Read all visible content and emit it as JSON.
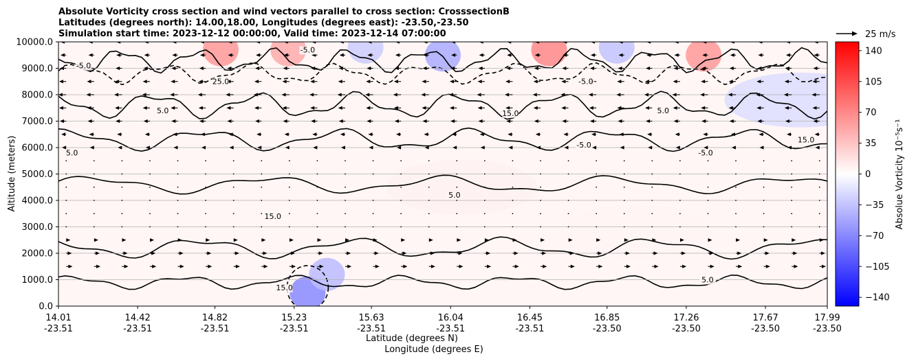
{
  "chart_data": {
    "type": "heatmap",
    "title_lines": [
      "Absolute Vorticity cross section and wind vectors parallel to cross section: CrosssectionB",
      "Latitudes (degrees north): 14.00,18.00, Longitudes (degrees east): -23.50,-23.50",
      "Simulation start time: 2023-12-12 00:00:00, Valid time: 2023-12-14 07:00:00"
    ],
    "ylabel": "Altitude (meters)",
    "xlabel_line1": "Latitude (degrees N)",
    "xlabel_line2": "Longitude (degrees E)",
    "ylim": [
      0,
      10000
    ],
    "y_ticks": [
      0,
      1000,
      2000,
      3000,
      4000,
      5000,
      6000,
      7000,
      8000,
      9000,
      10000
    ],
    "y_tick_labels": [
      "0.0",
      "1000.0",
      "2000.0",
      "3000.0",
      "4000.0",
      "5000.0",
      "6000.0",
      "7000.0",
      "8000.0",
      "9000.0",
      "10000.0"
    ],
    "x_range": [
      14.01,
      17.99
    ],
    "x_ticks": [
      {
        "lat": "14.01",
        "lon": "-23.51",
        "value": 14.01
      },
      {
        "lat": "14.42",
        "lon": "-23.51",
        "value": 14.42
      },
      {
        "lat": "14.82",
        "lon": "-23.51",
        "value": 14.82
      },
      {
        "lat": "15.23",
        "lon": "-23.51",
        "value": 15.23
      },
      {
        "lat": "15.63",
        "lon": "-23.51",
        "value": 15.63
      },
      {
        "lat": "16.04",
        "lon": "-23.51",
        "value": 16.04
      },
      {
        "lat": "16.45",
        "lon": "-23.51",
        "value": 16.45
      },
      {
        "lat": "16.85",
        "lon": "-23.50",
        "value": 16.85
      },
      {
        "lat": "17.26",
        "lon": "-23.50",
        "value": 17.26
      },
      {
        "lat": "17.67",
        "lon": "-23.50",
        "value": 17.67
      },
      {
        "lat": "17.99",
        "lon": "-23.50",
        "value": 17.99
      }
    ],
    "colorbar": {
      "label": "Absolue Vorticity 10⁻⁵s⁻¹",
      "range": [
        -150,
        150
      ],
      "ticks": [
        140,
        105,
        70,
        35,
        0,
        -35,
        -70,
        -105,
        -140
      ],
      "tick_labels": [
        "140",
        "105",
        "70",
        "35",
        "0",
        "−35",
        "−70",
        "−105",
        "−140"
      ],
      "colors": [
        "#0000ff",
        "#ffffff",
        "#ff0000"
      ]
    },
    "quiver_key": {
      "label": "25 m/s",
      "value": 25
    },
    "grid": "horizontal",
    "wind_rows_altitude": [
      1500,
      2000,
      2500,
      3000,
      3500,
      4000,
      4500,
      5000,
      5500,
      6000,
      6500,
      7000,
      7500,
      8000,
      8500,
      9000,
      9500,
      10000
    ],
    "wind_row_u": [
      6,
      5,
      3,
      1,
      0,
      0,
      0,
      0,
      -1,
      -3,
      -4,
      -6,
      -7,
      -8,
      -7,
      -6,
      -5,
      -5
    ],
    "vorticity_regions": [
      {
        "lat": 15.3,
        "alt": 500,
        "value": -70
      },
      {
        "lat": 15.4,
        "alt": 1200,
        "value": -40
      },
      {
        "lat": 14.85,
        "alt": 9700,
        "value": 60
      },
      {
        "lat": 15.2,
        "alt": 9700,
        "value": 50
      },
      {
        "lat": 16.55,
        "alt": 9700,
        "value": 70
      },
      {
        "lat": 17.35,
        "alt": 9500,
        "value": 60
      },
      {
        "lat": 16.0,
        "alt": 9500,
        "value": -50
      },
      {
        "lat": 16.9,
        "alt": 9800,
        "value": -35
      },
      {
        "lat": 15.6,
        "alt": 9800,
        "value": -30
      },
      {
        "lat": 17.85,
        "alt": 7800,
        "value": -20
      },
      {
        "lat": 16.1,
        "alt": 4500,
        "value": 8
      },
      {
        "lat": 17.0,
        "alt": 2800,
        "value": 6
      }
    ],
    "contour_labels": [
      {
        "text": "5.0",
        "lat": 14.08,
        "alt": 5700
      },
      {
        "text": "-5.0",
        "lat": 16.73,
        "alt": 6000
      },
      {
        "text": "-5.0",
        "lat": 17.36,
        "alt": 5700
      },
      {
        "text": "5.0",
        "lat": 16.06,
        "alt": 4100
      },
      {
        "text": "15.0",
        "lat": 15.12,
        "alt": 3300
      },
      {
        "text": "5.0",
        "lat": 14.55,
        "alt": 7300
      },
      {
        "text": "-5.0",
        "lat": 16.74,
        "alt": 8400
      },
      {
        "text": "15.0",
        "lat": 16.35,
        "alt": 7200
      },
      {
        "text": "5.0",
        "lat": 17.37,
        "alt": 900
      },
      {
        "text": "15.0",
        "lat": 15.18,
        "alt": 600
      },
      {
        "text": "-5.0",
        "lat": 14.14,
        "alt": 9000
      },
      {
        "text": "25.0",
        "lat": 14.85,
        "alt": 8400
      },
      {
        "text": "-5.0",
        "lat": 15.3,
        "alt": 9600
      },
      {
        "text": "5.0",
        "lat": 17.14,
        "alt": 7300
      },
      {
        "text": "15.0",
        "lat": 17.88,
        "alt": 6200
      }
    ]
  }
}
